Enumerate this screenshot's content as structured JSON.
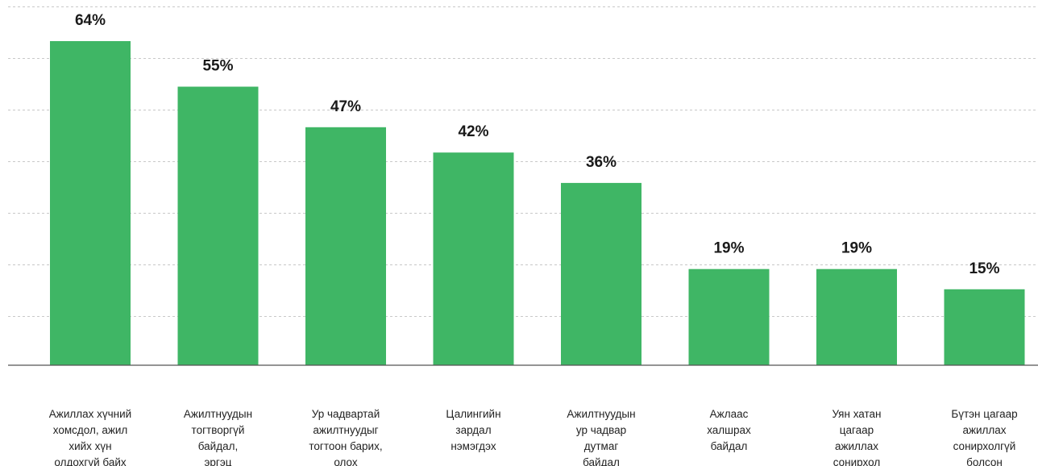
{
  "chart_data": {
    "type": "bar",
    "categories": [
      "Ажиллах хүчний хомсдол, ажил хийх хүн олдохгүй байх",
      "Ажилтнуудын тогтворгүй байдал, эргэц",
      "Ур чадвартай ажилтнуудыг тогтоон барих, олох",
      "Цалингийн зардал нэмэгдэх",
      "Ажилтнуудын ур чадвар дутмаг байдал",
      "Ажлаас халшрах байдал",
      "Уян хатан цагаар ажиллах сонирхол",
      "Бүтэн цагаар ажиллах сонирхолгүй болсон"
    ],
    "category_lines": [
      [
        "Ажиллах хүчний",
        "хомсдол, ажил",
        "хийх хүн",
        "олдохгүй байх"
      ],
      [
        "Ажилтнуудын",
        "тогтворгүй",
        "байдал,",
        "эргэц"
      ],
      [
        "Ур чадвартай",
        "ажилтнуудыг",
        "тогтоон барих,",
        "олох"
      ],
      [
        "Цалингийн",
        "зардал",
        "нэмэгдэх"
      ],
      [
        "Ажилтнуудын",
        "ур чадвар",
        "дутмаг",
        "байдал"
      ],
      [
        "Ажлаас",
        "халшрах",
        "байдал"
      ],
      [
        "Уян хатан",
        "цагаар",
        "ажиллах",
        "сонирхол"
      ],
      [
        "Бүтэн цагаар",
        "ажиллах",
        "сонирхолгүй",
        "болсон"
      ]
    ],
    "values": [
      64,
      55,
      47,
      42,
      36,
      19,
      19,
      15
    ],
    "value_labels": [
      "64%",
      "55%",
      "47%",
      "42%",
      "36%",
      "19%",
      "19%",
      "15%"
    ],
    "unit": "%",
    "ylim": [
      0,
      70
    ],
    "grid": true,
    "bar_color": "#3fb665"
  }
}
